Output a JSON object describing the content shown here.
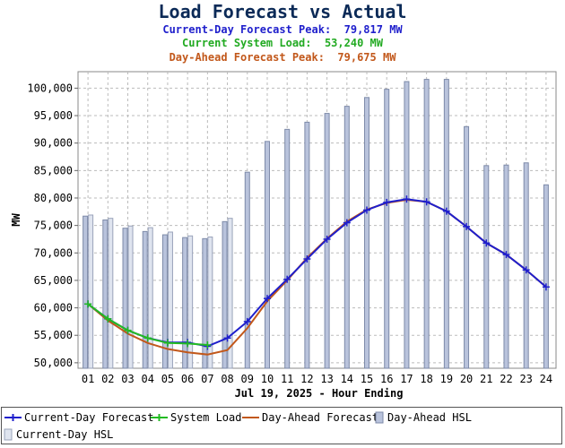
{
  "header": {
    "title": "Load Forecast vs Actual",
    "lines": [
      {
        "text": "Current-Day Forecast Peak:  79,817 MW",
        "color": "#1f1fcc"
      },
      {
        "text": "Current System Load:  53,240 MW",
        "color": "#22aa22"
      },
      {
        "text": "Day-Ahead Forecast Peak:  79,675 MW",
        "color": "#c2581b"
      }
    ]
  },
  "chart_data": {
    "type": "line",
    "title": "Load Forecast vs Actual",
    "xlabel": "Jul 19, 2025 - Hour Ending",
    "ylabel": "MW",
    "ylim": [
      49000,
      103000
    ],
    "yticks": [
      50000,
      55000,
      60000,
      65000,
      70000,
      75000,
      80000,
      85000,
      90000,
      95000,
      100000
    ],
    "ytick_labels": [
      "50,000",
      "55,000",
      "60,000",
      "65,000",
      "70,000",
      "75,000",
      "80,000",
      "85,000",
      "90,000",
      "95,000",
      "100,000"
    ],
    "grid": true,
    "categories": [
      "01",
      "02",
      "03",
      "04",
      "05",
      "06",
      "07",
      "08",
      "09",
      "10",
      "11",
      "12",
      "13",
      "14",
      "15",
      "16",
      "17",
      "18",
      "19",
      "20",
      "21",
      "22",
      "23",
      "24"
    ],
    "series": [
      {
        "name": "Current-Day Forecast",
        "kind": "line",
        "color": "#1f1fcc",
        "values": [
          60700,
          58000,
          55900,
          54500,
          53700,
          53700,
          53000,
          54500,
          57500,
          61700,
          65200,
          68900,
          72500,
          75500,
          77800,
          79200,
          79800,
          79300,
          77600,
          74800,
          71800,
          69700,
          66900,
          63800
        ]
      },
      {
        "name": "System Load",
        "kind": "line",
        "color": "#22bb22",
        "values": [
          60700,
          58000,
          55900,
          54500,
          53600,
          53500,
          53240,
          null,
          null,
          null,
          null,
          null,
          null,
          null,
          null,
          null,
          null,
          null,
          null,
          null,
          null,
          null,
          null,
          null
        ]
      },
      {
        "name": "Day-Ahead Forecast",
        "kind": "line",
        "color": "#c2581b",
        "values": [
          60700,
          57700,
          55300,
          53600,
          52500,
          51900,
          51500,
          52300,
          56300,
          61200,
          65000,
          69100,
          72600,
          75700,
          77900,
          79100,
          79675,
          79300,
          77600,
          74800,
          71800,
          69700,
          66900,
          63800
        ]
      },
      {
        "name": "Day-Ahead HSL",
        "kind": "bar",
        "color": "#b9c3dc",
        "values": [
          76700,
          76000,
          74500,
          73900,
          73300,
          72800,
          72600,
          75700,
          84700,
          90300,
          92500,
          93800,
          95400,
          96700,
          98300,
          99800,
          101200,
          101600,
          101600,
          93000,
          85900,
          86000,
          86400,
          82400
        ]
      },
      {
        "name": "Current-Day HSL",
        "kind": "bar",
        "color": "#dfe4ef",
        "values": [
          76900,
          76300,
          74900,
          74600,
          73800,
          73100,
          72900,
          76300,
          null,
          null,
          null,
          null,
          null,
          null,
          null,
          null,
          null,
          null,
          null,
          null,
          null,
          null,
          null,
          null
        ]
      }
    ]
  }
}
